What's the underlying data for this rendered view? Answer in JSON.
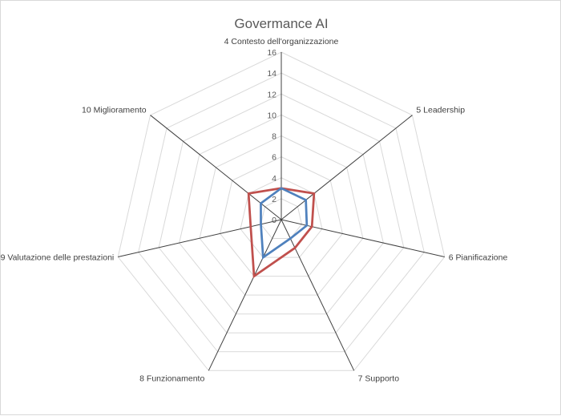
{
  "chart_data": {
    "type": "radar",
    "title": "Govermance AI",
    "categories": [
      "4 Contesto dell'organizzazione",
      "5 Leadership",
      "6 Pianificazione",
      "7 Supporto",
      "8 Funzionamento",
      "9 Valutazione delle prestazioni",
      "10 Miglioramento"
    ],
    "r_ticks": [
      "0",
      "2",
      "4",
      "6",
      "8",
      "10",
      "12",
      "14",
      "16"
    ],
    "rlim": [
      0,
      16
    ],
    "grid": true,
    "series": [
      {
        "color": "#c0504d",
        "values": [
          3,
          4,
          3,
          3,
          6,
          3,
          4
        ]
      },
      {
        "color": "#4f81bd",
        "values": [
          3,
          3,
          2.5,
          2,
          4,
          2,
          2.5
        ]
      }
    ]
  }
}
